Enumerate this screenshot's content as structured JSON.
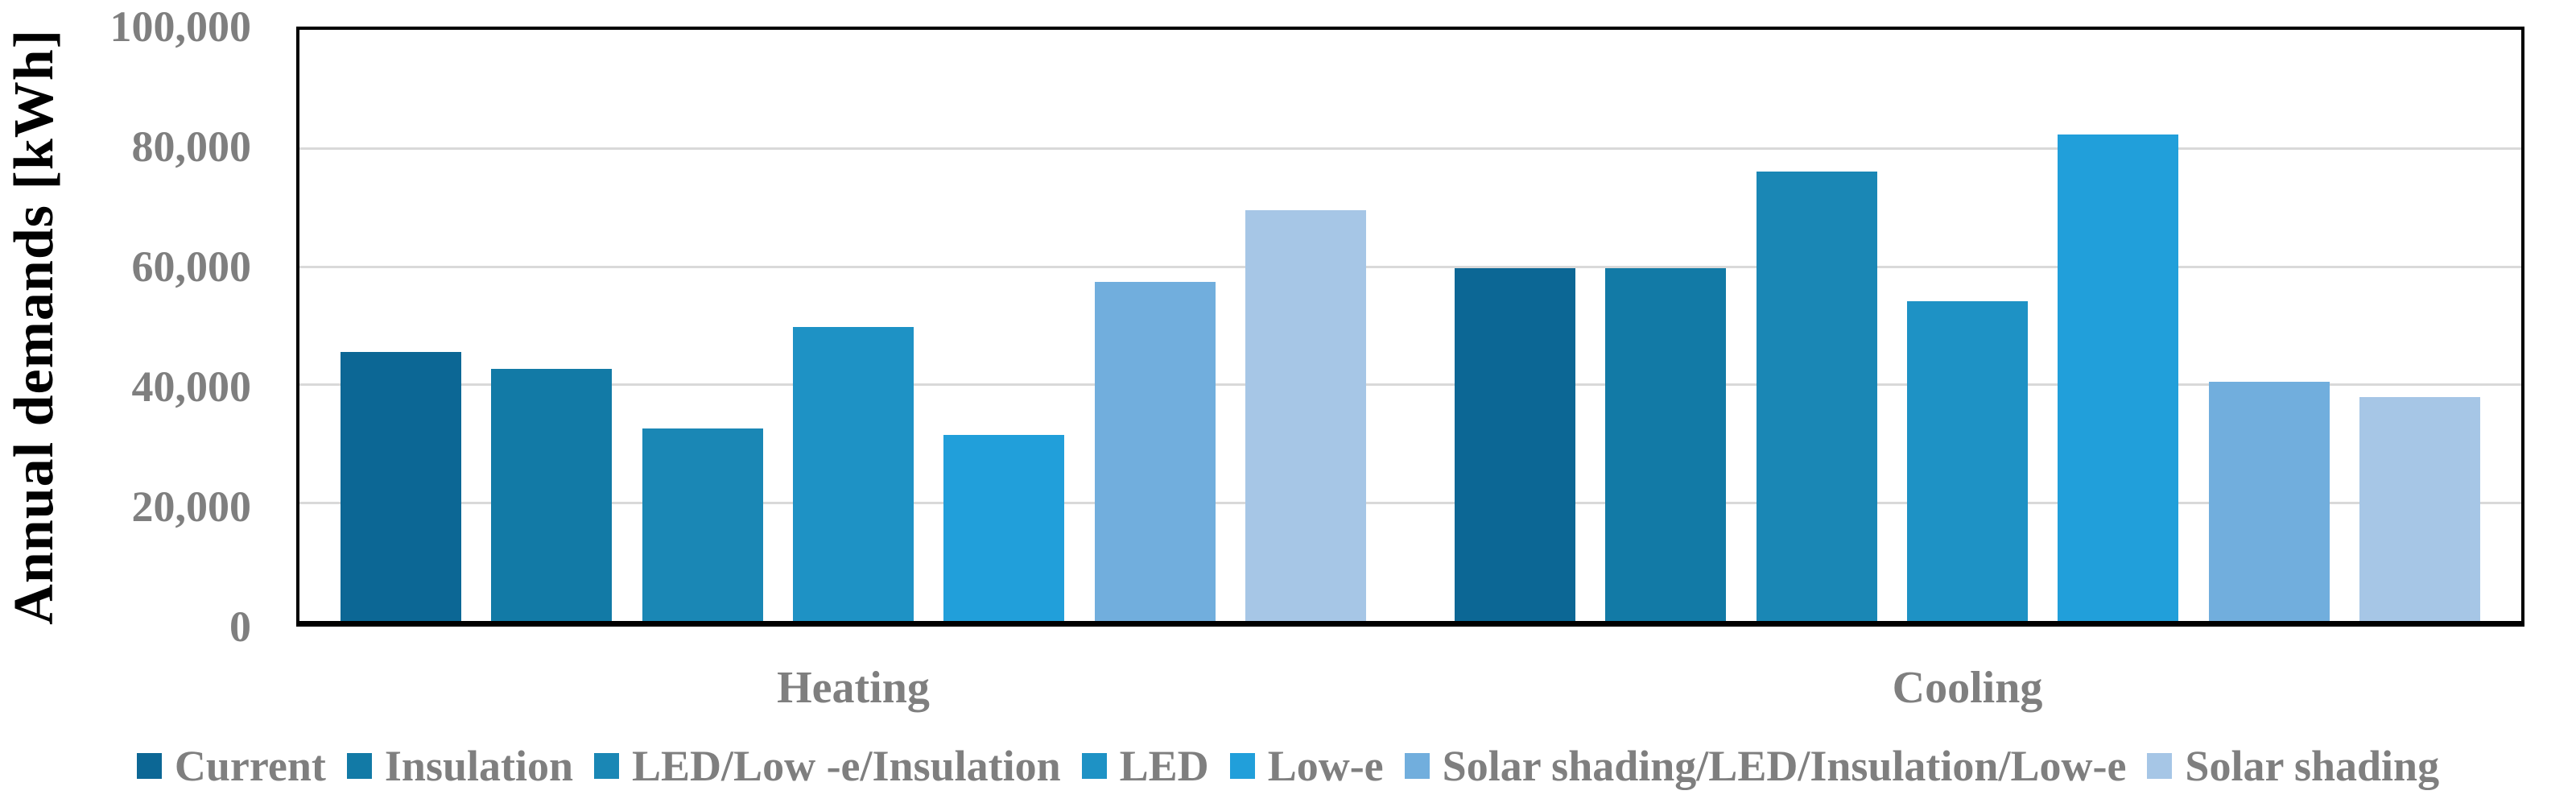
{
  "chart_data": {
    "type": "bar",
    "title": "",
    "ylabel": "Annual demands [kWh]",
    "xlabel": "",
    "ylim": [
      0,
      100000
    ],
    "ytick_interval": 20000,
    "yticks": [
      "0",
      "20,000",
      "40,000",
      "60,000",
      "80,000",
      "100,000"
    ],
    "ytick_values": [
      0,
      20000,
      40000,
      60000,
      80000,
      100000
    ],
    "categories": [
      "Heating",
      "Cooling"
    ],
    "series": [
      {
        "name": "Current",
        "color": "#0c6795",
        "values": [
          45500,
          59700
        ]
      },
      {
        "name": "Insulation",
        "color": "#127aa6",
        "values": [
          42700,
          59700
        ]
      },
      {
        "name": "LED/Low -e/Insulation",
        "color": "#1a87b5",
        "values": [
          32500,
          76000
        ]
      },
      {
        "name": "LED",
        "color": "#1e92c5",
        "values": [
          49700,
          54100
        ]
      },
      {
        "name": "Low-e",
        "color": "#219fda",
        "values": [
          31500,
          82300
        ]
      },
      {
        "name": "Solar shading/LED/Insulation/Low-e",
        "color": "#71aedd",
        "values": [
          57400,
          40500
        ]
      },
      {
        "name": "Solar shading",
        "color": "#a6c6e6",
        "values": [
          69500,
          37900
        ]
      }
    ],
    "legend_position": "bottom",
    "grid": "horizontal",
    "gridline_color": "#d9d9d9",
    "plot_border_color": "#000000",
    "axis_text_color": "#7f7f7f",
    "axis_title_color": "#000000"
  }
}
